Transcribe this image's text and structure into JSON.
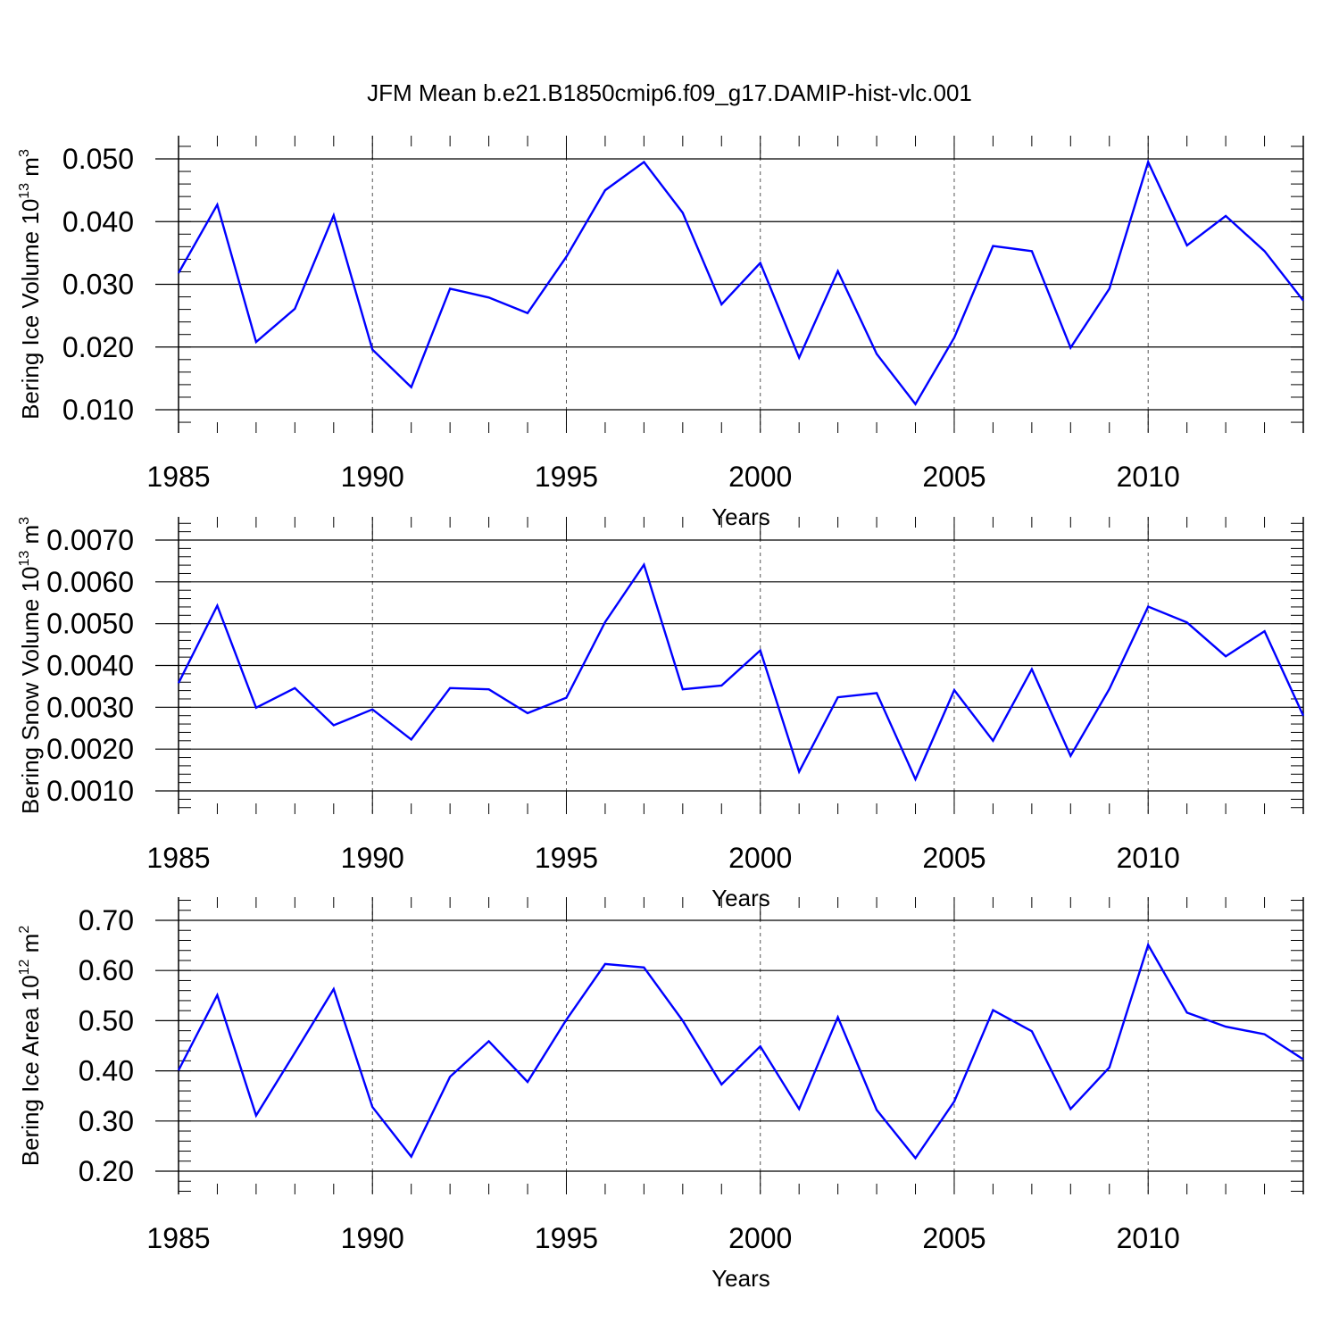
{
  "title": "JFM Mean b.e21.B1850cmip6.f09_g17.DAMIP-hist-vlc.001",
  "colors": {
    "line": "#0000ff",
    "axis": "#000000",
    "grid": "#555555"
  },
  "chart_data": [
    {
      "type": "line",
      "ylabel_main": "Bering Ice Volume 10",
      "ylabel_exp": "13",
      "ylabel_unit": "m",
      "ylabel_unit_exp": "3",
      "xlabel": "Years",
      "xlim": [
        1985,
        2014
      ],
      "ylim": [
        0.006,
        0.054
      ],
      "yticks": [
        0.01,
        0.02,
        0.03,
        0.04,
        0.05
      ],
      "ytick_labels": [
        "0.010",
        "0.020",
        "0.030",
        "0.040",
        "0.050"
      ],
      "xticks": [
        1985,
        1990,
        1995,
        2000,
        2005,
        2010
      ],
      "xtick_labels": [
        "1985",
        "1990",
        "1995",
        "2000",
        "2005",
        "2010"
      ],
      "x": [
        1985,
        1986,
        1987,
        1988,
        1989,
        1990,
        1991,
        1992,
        1993,
        1994,
        1995,
        1996,
        1997,
        1998,
        1999,
        2000,
        2001,
        2002,
        2003,
        2004,
        2005,
        2006,
        2007,
        2008,
        2009,
        2010,
        2011,
        2012,
        2013,
        2014
      ],
      "values": [
        0.0318,
        0.0427,
        0.0208,
        0.0261,
        0.041,
        0.0196,
        0.0136,
        0.0293,
        0.0279,
        0.0254,
        0.0344,
        0.045,
        0.0495,
        0.0414,
        0.0268,
        0.0334,
        0.0183,
        0.0321,
        0.0189,
        0.0109,
        0.0215,
        0.0361,
        0.0353,
        0.0199,
        0.0293,
        0.0495,
        0.0362,
        0.0409,
        0.0353,
        0.0274
      ]
    },
    {
      "type": "line",
      "ylabel_main": "Bering Snow Volume 10",
      "ylabel_exp": "13",
      "ylabel_unit": "m",
      "ylabel_unit_exp": "3",
      "xlabel": "Years",
      "xlim": [
        1985,
        2014
      ],
      "ylim": [
        0.0006,
        0.0076
      ],
      "yticks": [
        0.001,
        0.002,
        0.003,
        0.004,
        0.005,
        0.006,
        0.007
      ],
      "ytick_labels": [
        "0.0010",
        "0.0020",
        "0.0030",
        "0.0040",
        "0.0050",
        "0.0060",
        "0.0070"
      ],
      "xticks": [
        1985,
        1990,
        1995,
        2000,
        2005,
        2010
      ],
      "xtick_labels": [
        "1985",
        "1990",
        "1995",
        "2000",
        "2005",
        "2010"
      ],
      "x": [
        1985,
        1986,
        1987,
        1988,
        1989,
        1990,
        1991,
        1992,
        1993,
        1994,
        1995,
        1996,
        1997,
        1998,
        1999,
        2000,
        2001,
        2002,
        2003,
        2004,
        2005,
        2006,
        2007,
        2008,
        2009,
        2010,
        2011,
        2012,
        2013,
        2014
      ],
      "values": [
        0.00358,
        0.00543,
        0.00299,
        0.00346,
        0.00257,
        0.00295,
        0.00223,
        0.00346,
        0.00343,
        0.00286,
        0.00323,
        0.00504,
        0.00641,
        0.00343,
        0.00352,
        0.00436,
        0.00146,
        0.00324,
        0.00334,
        0.00128,
        0.00341,
        0.0022,
        0.00391,
        0.00184,
        0.00344,
        0.00541,
        0.00503,
        0.00422,
        0.00482,
        0.0028
      ]
    },
    {
      "type": "line",
      "ylabel_main": "Bering Ice Area 10",
      "ylabel_exp": "12",
      "ylabel_unit": "m",
      "ylabel_unit_exp": "2",
      "xlabel": "Years",
      "xlim": [
        1985,
        2014
      ],
      "ylim": [
        0.15,
        0.77
      ],
      "yticks": [
        0.2,
        0.3,
        0.4,
        0.5,
        0.6,
        0.7
      ],
      "ytick_labels": [
        "0.20",
        "0.30",
        "0.40",
        "0.50",
        "0.60",
        "0.70"
      ],
      "xticks": [
        1985,
        1990,
        1995,
        2000,
        2005,
        2010
      ],
      "xtick_labels": [
        "1985",
        "1990",
        "1995",
        "2000",
        "2005",
        "2010"
      ],
      "x": [
        1985,
        1986,
        1987,
        1988,
        1989,
        1990,
        1991,
        1992,
        1993,
        1994,
        1995,
        1996,
        1997,
        1998,
        1999,
        2000,
        2001,
        2002,
        2003,
        2004,
        2005,
        2006,
        2007,
        2008,
        2009,
        2010,
        2011,
        2012,
        2013,
        2014
      ],
      "values": [
        0.401,
        0.551,
        0.311,
        0.436,
        0.563,
        0.328,
        0.229,
        0.388,
        0.459,
        0.378,
        0.502,
        0.613,
        0.606,
        0.5,
        0.373,
        0.449,
        0.324,
        0.507,
        0.322,
        0.226,
        0.339,
        0.521,
        0.479,
        0.324,
        0.407,
        0.651,
        0.516,
        0.488,
        0.473,
        0.423
      ]
    }
  ]
}
